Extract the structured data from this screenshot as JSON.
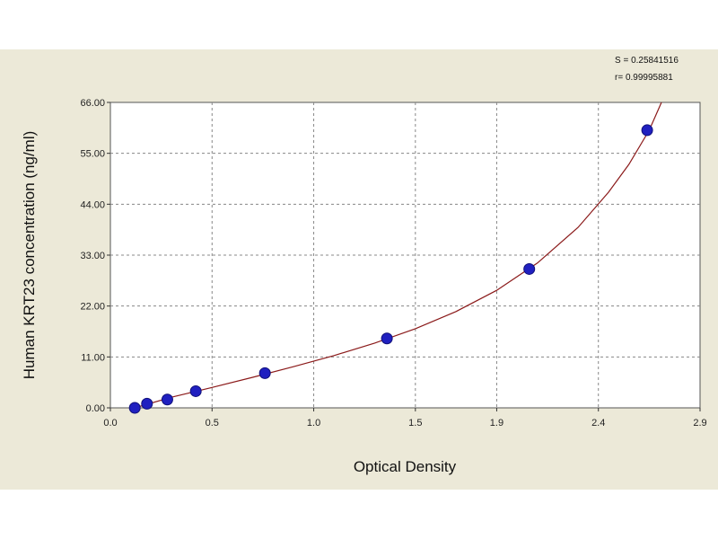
{
  "chart_data": {
    "type": "scatter",
    "title": "",
    "xlabel": "Optical Density",
    "ylabel": "Human  KRT23 concentration (ng/ml)",
    "xlim": [
      0.0,
      2.9
    ],
    "ylim": [
      0.0,
      66.0
    ],
    "x_ticks": [
      "0.0",
      "0.5",
      "1.0",
      "1.5",
      "1.9",
      "2.4",
      "2.9"
    ],
    "x_tick_values": [
      0.0,
      0.5,
      1.0,
      1.5,
      1.9,
      2.4,
      2.9
    ],
    "y_ticks": [
      "0.00",
      "11.00",
      "22.00",
      "33.00",
      "44.00",
      "55.00",
      "66.00"
    ],
    "y_tick_values": [
      0,
      11,
      22,
      33,
      44,
      55,
      66
    ],
    "grid": true,
    "series": [
      {
        "points": [
          {
            "x": 0.12,
            "y": 0.0
          },
          {
            "x": 0.18,
            "y": 0.9
          },
          {
            "x": 0.28,
            "y": 1.8
          },
          {
            "x": 0.42,
            "y": 3.6
          },
          {
            "x": 0.76,
            "y": 7.5
          },
          {
            "x": 1.36,
            "y": 15.0
          },
          {
            "x": 2.06,
            "y": 30.0
          },
          {
            "x": 2.64,
            "y": 60.0
          }
        ]
      }
    ],
    "fit_curve": {
      "x": [
        0.12,
        0.3,
        0.5,
        0.7,
        0.9,
        1.1,
        1.3,
        1.5,
        1.7,
        1.9,
        2.1,
        2.3,
        2.45,
        2.55,
        2.65,
        2.71
      ],
      "y": [
        0.0,
        2.3,
        4.4,
        6.6,
        8.9,
        11.3,
        14.0,
        17.1,
        20.8,
        25.4,
        31.3,
        39.0,
        46.6,
        52.6,
        60.0,
        66.0
      ]
    },
    "stats": [
      "S = 0.25841516",
      "r= 0.99995881"
    ],
    "colors": {
      "background": "#ece9d8",
      "plot_area": "#ffffff",
      "grid": "#888888",
      "point": "#2020c0",
      "curve": "#8b1a1a"
    }
  }
}
